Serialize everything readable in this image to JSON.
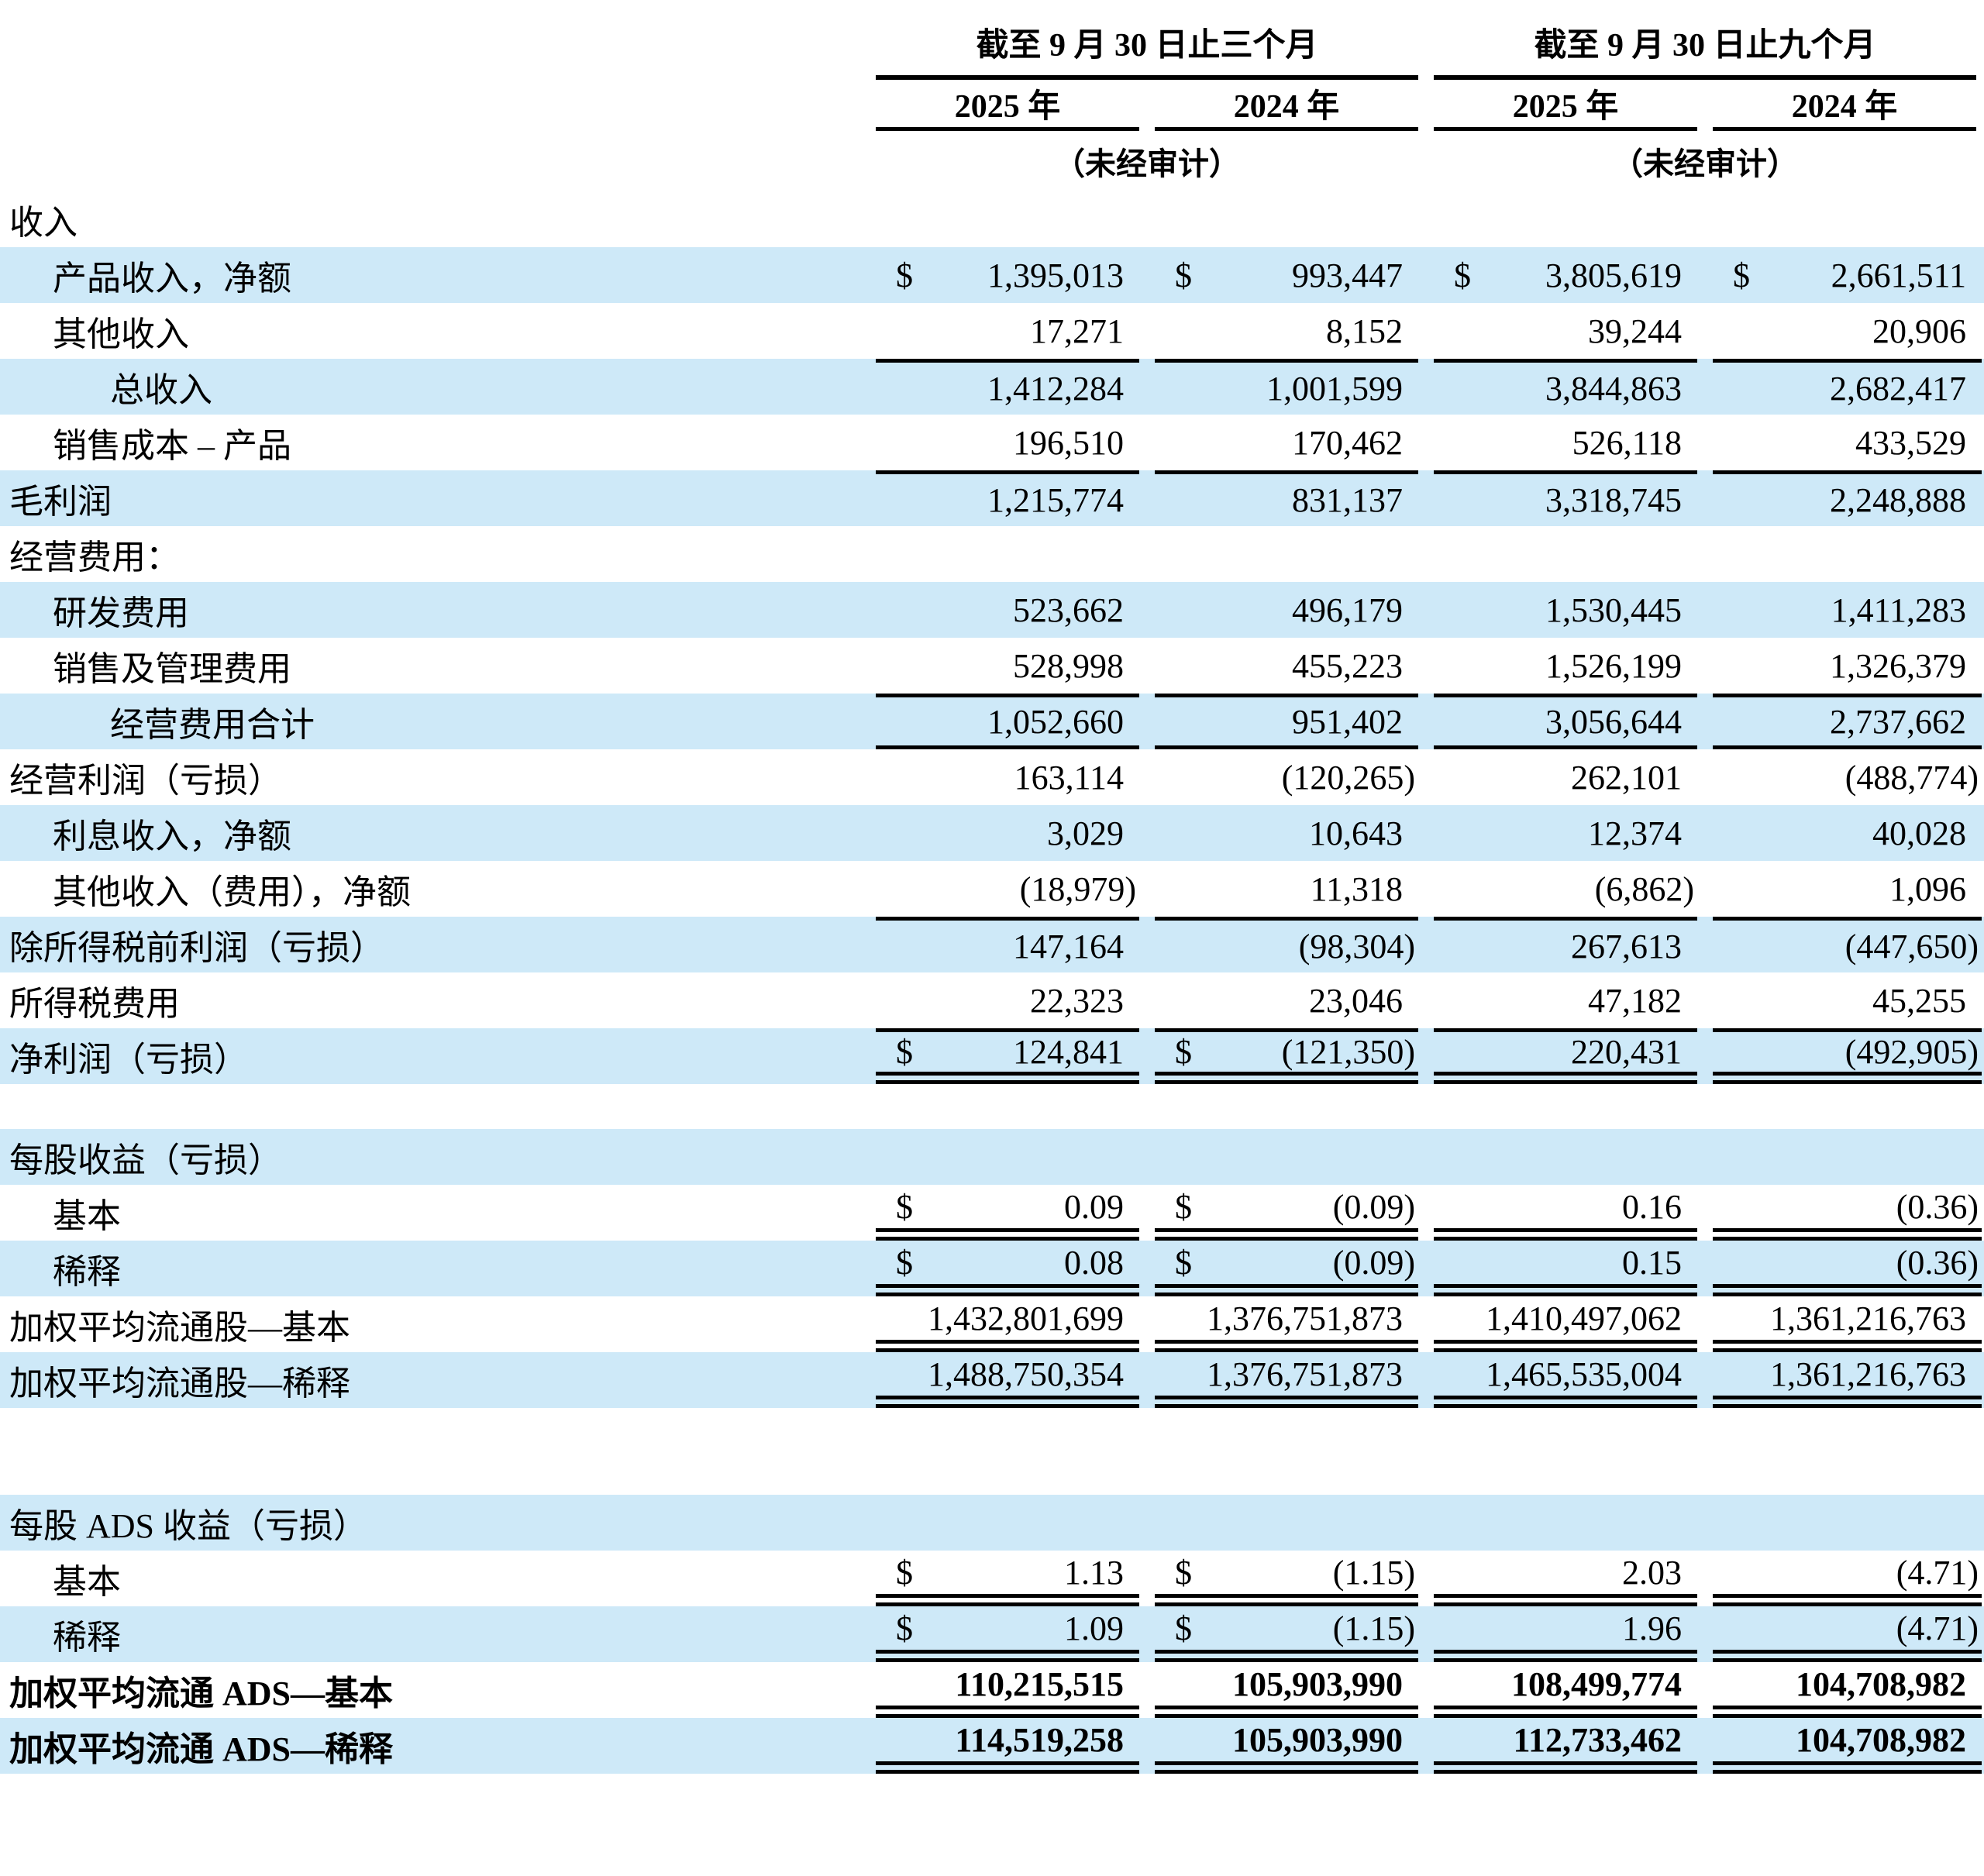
{
  "colors": {
    "row_stripe": "#cee9f8",
    "rule": "#000000",
    "text": "#000000"
  },
  "table": {
    "groups": [
      {
        "title": "截至 9 月 30 日止三个月",
        "years": [
          "2025 年",
          "2024 年"
        ],
        "unaudited": "（未经审计）"
      },
      {
        "title": "截至 9 月 30 日止九个月",
        "years": [
          "2025 年",
          "2024 年"
        ],
        "unaudited": "（未经审计）"
      }
    ],
    "rows": [
      {
        "label": "收入",
        "indent": 0,
        "shade": false,
        "cells": null
      },
      {
        "label": "产品收入，净额",
        "indent": 1,
        "shade": true,
        "border": "none",
        "cells": [
          {
            "cur": "$",
            "val": "1,395,013"
          },
          {
            "cur": "$",
            "val": "993,447"
          },
          {
            "cur": "$",
            "val": "3,805,619"
          },
          {
            "cur": "$",
            "val": "2,661,511"
          }
        ]
      },
      {
        "label": "其他收入",
        "indent": 1,
        "shade": false,
        "border": "none",
        "cells": [
          {
            "cur": "",
            "val": "17,271"
          },
          {
            "cur": "",
            "val": "8,152"
          },
          {
            "cur": "",
            "val": "39,244"
          },
          {
            "cur": "",
            "val": "20,906"
          }
        ]
      },
      {
        "label": "总收入",
        "indent": 2,
        "shade": true,
        "border": "top",
        "cells": [
          {
            "cur": "",
            "val": "1,412,284"
          },
          {
            "cur": "",
            "val": "1,001,599"
          },
          {
            "cur": "",
            "val": "3,844,863"
          },
          {
            "cur": "",
            "val": "2,682,417"
          }
        ]
      },
      {
        "label": "销售成本 – 产品",
        "indent": 1,
        "shade": false,
        "border": "none",
        "cells": [
          {
            "cur": "",
            "val": "196,510"
          },
          {
            "cur": "",
            "val": "170,462"
          },
          {
            "cur": "",
            "val": "526,118"
          },
          {
            "cur": "",
            "val": "433,529"
          }
        ]
      },
      {
        "label": "毛利润",
        "indent": 0,
        "shade": true,
        "border": "top",
        "cells": [
          {
            "cur": "",
            "val": "1,215,774"
          },
          {
            "cur": "",
            "val": "831,137"
          },
          {
            "cur": "",
            "val": "3,318,745"
          },
          {
            "cur": "",
            "val": "2,248,888"
          }
        ]
      },
      {
        "label": "经营费用：",
        "indent": 0,
        "shade": false,
        "cells": null
      },
      {
        "label": "研发费用",
        "indent": 1,
        "shade": true,
        "border": "none",
        "cells": [
          {
            "cur": "",
            "val": "523,662"
          },
          {
            "cur": "",
            "val": "496,179"
          },
          {
            "cur": "",
            "val": "1,530,445"
          },
          {
            "cur": "",
            "val": "1,411,283"
          }
        ]
      },
      {
        "label": "销售及管理费用",
        "indent": 1,
        "shade": false,
        "border": "none",
        "cells": [
          {
            "cur": "",
            "val": "528,998"
          },
          {
            "cur": "",
            "val": "455,223"
          },
          {
            "cur": "",
            "val": "1,526,199"
          },
          {
            "cur": "",
            "val": "1,326,379"
          }
        ]
      },
      {
        "label": "经营费用合计",
        "indent": 2,
        "shade": true,
        "border": "topbottom",
        "cells": [
          {
            "cur": "",
            "val": "1,052,660"
          },
          {
            "cur": "",
            "val": "951,402"
          },
          {
            "cur": "",
            "val": "3,056,644"
          },
          {
            "cur": "",
            "val": "2,737,662"
          }
        ]
      },
      {
        "label": "经营利润（亏损）",
        "indent": 0,
        "shade": false,
        "border": "none",
        "cells": [
          {
            "cur": "",
            "val": "163,114"
          },
          {
            "cur": "",
            "val": "(120,265)"
          },
          {
            "cur": "",
            "val": "262,101"
          },
          {
            "cur": "",
            "val": "(488,774)"
          }
        ]
      },
      {
        "label": "利息收入，净额",
        "indent": 1,
        "shade": true,
        "border": "none",
        "cells": [
          {
            "cur": "",
            "val": "3,029"
          },
          {
            "cur": "",
            "val": "10,643"
          },
          {
            "cur": "",
            "val": "12,374"
          },
          {
            "cur": "",
            "val": "40,028"
          }
        ]
      },
      {
        "label": "其他收入（费用），净额",
        "indent": 1,
        "shade": false,
        "border": "none",
        "cells": [
          {
            "cur": "",
            "val": "(18,979)"
          },
          {
            "cur": "",
            "val": "11,318"
          },
          {
            "cur": "",
            "val": "(6,862)"
          },
          {
            "cur": "",
            "val": "1,096"
          }
        ]
      },
      {
        "label": "除所得税前利润（亏损）",
        "indent": 0,
        "shade": true,
        "border": "top",
        "cells": [
          {
            "cur": "",
            "val": "147,164"
          },
          {
            "cur": "",
            "val": "(98,304)"
          },
          {
            "cur": "",
            "val": "267,613"
          },
          {
            "cur": "",
            "val": "(447,650)"
          }
        ]
      },
      {
        "label": "所得税费用",
        "indent": 0,
        "shade": false,
        "border": "none",
        "cells": [
          {
            "cur": "",
            "val": "22,323"
          },
          {
            "cur": "",
            "val": "23,046"
          },
          {
            "cur": "",
            "val": "47,182"
          },
          {
            "cur": "",
            "val": "45,255"
          }
        ]
      },
      {
        "label": "净利润（亏损）",
        "indent": 0,
        "shade": true,
        "border": "top-dbl",
        "cells": [
          {
            "cur": "$",
            "val": "124,841"
          },
          {
            "cur": "$",
            "val": "(121,350)"
          },
          {
            "cur": "",
            "val": "220,431"
          },
          {
            "cur": "",
            "val": "(492,905)"
          }
        ]
      },
      {
        "spacer": 1
      },
      {
        "label": "每股收益（亏损）",
        "indent": 0,
        "shade": true,
        "cells": null
      },
      {
        "label": "基本",
        "indent": 1,
        "shade": false,
        "border": "dbl",
        "cells": [
          {
            "cur": "$",
            "val": "0.09"
          },
          {
            "cur": "$",
            "val": "(0.09)"
          },
          {
            "cur": "",
            "val": "0.16"
          },
          {
            "cur": "",
            "val": "(0.36)"
          }
        ]
      },
      {
        "label": "稀释",
        "indent": 1,
        "shade": true,
        "border": "dbl",
        "cells": [
          {
            "cur": "$",
            "val": "0.08"
          },
          {
            "cur": "$",
            "val": "(0.09)"
          },
          {
            "cur": "",
            "val": "0.15"
          },
          {
            "cur": "",
            "val": "(0.36)"
          }
        ]
      },
      {
        "label": "加权平均流通股—基本",
        "indent": 0,
        "shade": false,
        "border": "dbl",
        "cells": [
          {
            "cur": "",
            "val": "1,432,801,699"
          },
          {
            "cur": "",
            "val": "1,376,751,873"
          },
          {
            "cur": "",
            "val": "1,410,497,062"
          },
          {
            "cur": "",
            "val": "1,361,216,763"
          }
        ]
      },
      {
        "label": "加权平均流通股—稀释",
        "indent": 0,
        "shade": true,
        "border": "dbl",
        "cells": [
          {
            "cur": "",
            "val": "1,488,750,354"
          },
          {
            "cur": "",
            "val": "1,376,751,873"
          },
          {
            "cur": "",
            "val": "1,465,535,004"
          },
          {
            "cur": "",
            "val": "1,361,216,763"
          }
        ]
      },
      {
        "spacer": 2
      },
      {
        "label": "每股 ADS 收益（亏损）",
        "indent": 0,
        "shade": true,
        "cells": null
      },
      {
        "label": "基本",
        "indent": 1,
        "shade": false,
        "border": "dbl",
        "cells": [
          {
            "cur": "$",
            "val": "1.13"
          },
          {
            "cur": "$",
            "val": "(1.15)"
          },
          {
            "cur": "",
            "val": "2.03"
          },
          {
            "cur": "",
            "val": "(4.71)"
          }
        ]
      },
      {
        "label": "稀释",
        "indent": 1,
        "shade": true,
        "border": "dbl",
        "cells": [
          {
            "cur": "$",
            "val": "1.09"
          },
          {
            "cur": "$",
            "val": "(1.15)"
          },
          {
            "cur": "",
            "val": "1.96"
          },
          {
            "cur": "",
            "val": "(4.71)"
          }
        ]
      },
      {
        "label": "加权平均流通 ADS—基本",
        "indent": 0,
        "shade": false,
        "bold": true,
        "border": "dbl",
        "cells": [
          {
            "cur": "",
            "val": "110,215,515"
          },
          {
            "cur": "",
            "val": "105,903,990"
          },
          {
            "cur": "",
            "val": "108,499,774"
          },
          {
            "cur": "",
            "val": "104,708,982"
          }
        ]
      },
      {
        "label": "加权平均流通 ADS—稀释",
        "indent": 0,
        "shade": true,
        "bold": true,
        "border": "dbl",
        "cells": [
          {
            "cur": "",
            "val": "114,519,258"
          },
          {
            "cur": "",
            "val": "105,903,990"
          },
          {
            "cur": "",
            "val": "112,733,462"
          },
          {
            "cur": "",
            "val": "104,708,982"
          }
        ]
      }
    ]
  }
}
